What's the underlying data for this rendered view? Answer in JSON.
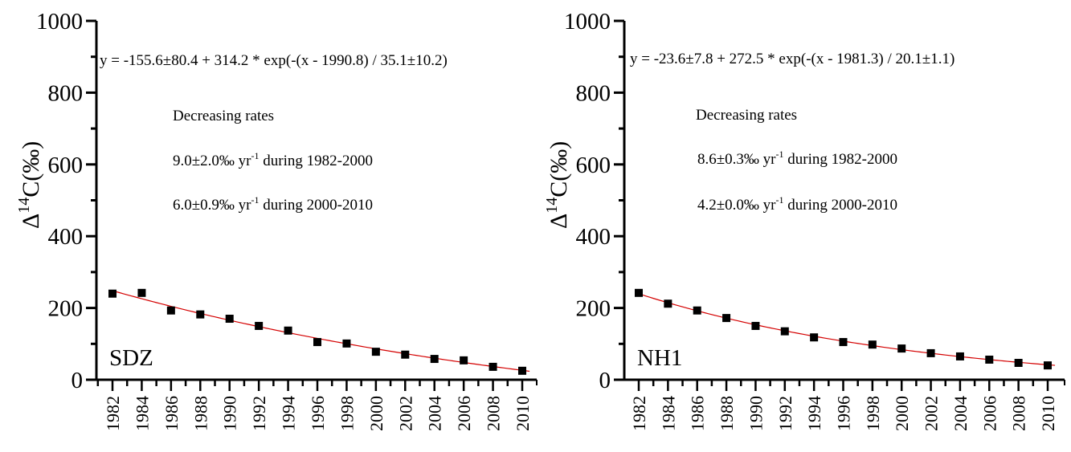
{
  "chart_data": [
    {
      "type": "scatter",
      "panel": "left",
      "site_label": "SDZ",
      "ylabel_main": "Δ",
      "ylabel_sup": "14",
      "ylabel_rest": "C(‰)",
      "xlabel": "",
      "ylim": [
        0,
        1000
      ],
      "yticks": [
        0,
        200,
        400,
        600,
        800,
        1000
      ],
      "yminor": [
        100,
        300,
        500,
        700,
        900
      ],
      "xlim": [
        1981,
        2011
      ],
      "xticks": [
        1982,
        1984,
        1986,
        1988,
        1990,
        1992,
        1994,
        1996,
        1998,
        2000,
        2002,
        2004,
        2006,
        2008,
        2010
      ],
      "x": [
        1982,
        1984,
        1986,
        1988,
        1990,
        1992,
        1994,
        1996,
        1998,
        2000,
        2002,
        2004,
        2006,
        2008,
        2010
      ],
      "y": [
        240,
        242,
        193,
        182,
        170,
        150,
        137,
        105,
        101,
        78,
        70,
        58,
        54,
        36,
        25
      ],
      "fit": {
        "y0": -155.6,
        "A": 314.2,
        "x0": 1990.8,
        "t": 35.1
      },
      "equation": "y = -155.6±80.4 + 314.2 * exp(-(x - 1990.8) / 35.1±10.2)",
      "notes": {
        "heading": "Decreasing rates",
        "rate1_value": "9.0±2.0‰ yr",
        "rate1_sup": "-1",
        "rate1_rest": " during 1982-2000",
        "rate2_value": "6.0±0.9‰ yr",
        "rate2_sup": "-1",
        "rate2_rest": " during 2000-2010"
      },
      "colors": {
        "points": "#000000",
        "fit_line": "#d40000"
      }
    },
    {
      "type": "scatter",
      "panel": "right",
      "site_label": "NH1",
      "ylabel_main": "Δ",
      "ylabel_sup": "14",
      "ylabel_rest": "C(‰)",
      "xlabel": "",
      "ylim": [
        0,
        1000
      ],
      "yticks": [
        0,
        200,
        400,
        600,
        800,
        1000
      ],
      "yminor": [
        100,
        300,
        500,
        700,
        900
      ],
      "xlim": [
        1981,
        2011
      ],
      "xticks": [
        1982,
        1984,
        1986,
        1988,
        1990,
        1992,
        1994,
        1996,
        1998,
        2000,
        2002,
        2004,
        2006,
        2008,
        2010
      ],
      "x": [
        1982,
        1984,
        1986,
        1988,
        1990,
        1992,
        1994,
        1996,
        1998,
        2000,
        2002,
        2004,
        2006,
        2008,
        2010
      ],
      "y": [
        242,
        212,
        193,
        172,
        150,
        135,
        118,
        105,
        98,
        87,
        74,
        65,
        56,
        47,
        40
      ],
      "fit": {
        "y0": -23.6,
        "A": 272.5,
        "x0": 1981.3,
        "t": 20.1
      },
      "equation": "y = -23.6±7.8 + 272.5 * exp(-(x - 1981.3) / 20.1±1.1)",
      "notes": {
        "heading": "Decreasing rates",
        "rate1_value": "8.6±0.3‰ yr",
        "rate1_sup": "-1",
        "rate1_rest": " during 1982-2000",
        "rate2_value": "4.2±0.0‰ yr",
        "rate2_sup": "-1",
        "rate2_rest": " during 2000-2010"
      },
      "colors": {
        "points": "#000000",
        "fit_line": "#d40000"
      }
    }
  ]
}
